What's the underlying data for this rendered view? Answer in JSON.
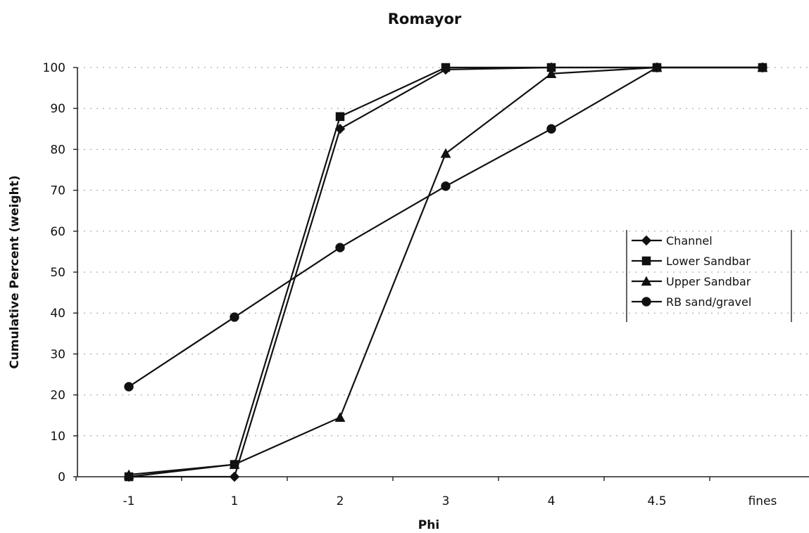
{
  "chart_data": {
    "type": "line",
    "title": "Romayor",
    "xlabel": "Phi",
    "ylabel": "Cumulative Percent (weight)",
    "categories": [
      "-1",
      "1",
      "2",
      "3",
      "4",
      "4.5",
      "fines"
    ],
    "ylim": [
      0,
      100
    ],
    "yticks": [
      "0",
      "10",
      "20",
      "30",
      "40",
      "50",
      "60",
      "70",
      "80",
      "90",
      "100"
    ],
    "grid": true,
    "legend_position": "right",
    "series": [
      {
        "name": "Channel",
        "marker": "diamond",
        "color": "#111111",
        "values": [
          0,
          0,
          85,
          99.5,
          100,
          100,
          100
        ]
      },
      {
        "name": "Lower Sandbar",
        "marker": "square",
        "color": "#111111",
        "values": [
          0,
          3,
          88,
          100,
          100,
          100,
          100
        ]
      },
      {
        "name": "Upper Sandbar",
        "marker": "triangle",
        "color": "#111111",
        "values": [
          0.5,
          3,
          14.5,
          79,
          98.5,
          100,
          100
        ]
      },
      {
        "name": "RB sand/gravel",
        "marker": "circle",
        "color": "#111111",
        "values": [
          22,
          39,
          56,
          71,
          85,
          100,
          100
        ]
      }
    ]
  }
}
